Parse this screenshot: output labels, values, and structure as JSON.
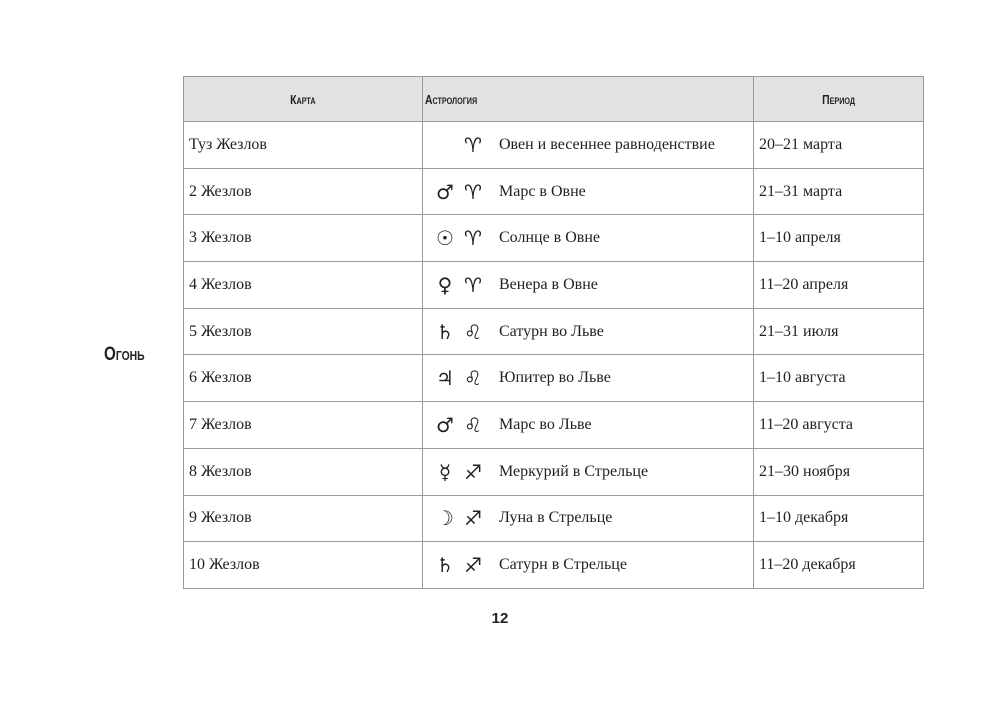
{
  "side_label": "Огонь",
  "headers": {
    "card": "Карта",
    "astrology": "Астрология",
    "period": "Период"
  },
  "rows": [
    {
      "card": "Туз Жезлов",
      "planet": "",
      "sign": "♈",
      "astro": "Овен и весеннее равноденствие",
      "period": "20–21 марта"
    },
    {
      "card": "2 Жезлов",
      "planet": "♂",
      "sign": "♈",
      "astro": "Марс в Овне",
      "period": "21–31 марта"
    },
    {
      "card": "3 Жезлов",
      "planet": "☉",
      "sign": "♈",
      "astro": "Солнце в Овне",
      "period": "1–10 апреля"
    },
    {
      "card": "4 Жезлов",
      "planet": "♀",
      "sign": "♈",
      "astro": "Венера в Овне",
      "period": "11–20 апреля"
    },
    {
      "card": "5 Жезлов",
      "planet": "♄",
      "sign": "♌",
      "astro": "Сатурн во Льве",
      "period": "21–31 июля"
    },
    {
      "card": "6 Жезлов",
      "planet": "♃",
      "sign": "♌",
      "astro": "Юпитер во Льве",
      "period": "1–10 августа"
    },
    {
      "card": "7 Жезлов",
      "planet": "♂",
      "sign": "♌",
      "astro": "Марс во Льве",
      "period": "11–20 августа"
    },
    {
      "card": "8 Жезлов",
      "planet": "☿",
      "sign": "♐",
      "astro": "Меркурий в Стрельце",
      "period": "21–30 ноября"
    },
    {
      "card": "9 Жезлов",
      "planet": "☽",
      "sign": "♐",
      "astro": "Луна в Стрельце",
      "period": "1–10 декабря"
    },
    {
      "card": "10 Жезлов",
      "planet": "♄",
      "sign": "♐",
      "astro": "Сатурн в Стрельце",
      "period": "11–20 декабря"
    }
  ],
  "page_number": "12"
}
